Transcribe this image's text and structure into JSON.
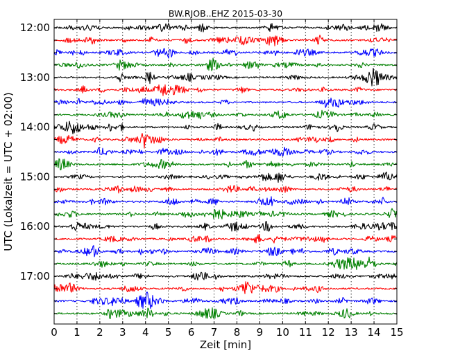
{
  "chart_data": {
    "type": "line",
    "title": "BW.RJOB..EHZ 2015-03-30",
    "xlabel": "Zeit  [min]",
    "ylabel": "UTC (Lokalzeit = UTC + 02:00)",
    "xlim": [
      0,
      15
    ],
    "x_ticks": [
      "0",
      "1",
      "2",
      "3",
      "4",
      "5",
      "6",
      "7",
      "8",
      "9",
      "10",
      "11",
      "12",
      "13",
      "14",
      "15"
    ],
    "y_ticks": [
      "12:00",
      "13:00",
      "14:00",
      "15:00",
      "16:00",
      "17:00"
    ],
    "grid": "x-dotted",
    "trace_interval_minutes": 15,
    "traces": [
      {
        "start": "12:00",
        "color": "#000000"
      },
      {
        "start": "12:15",
        "color": "#ff0000"
      },
      {
        "start": "12:30",
        "color": "#0000ff"
      },
      {
        "start": "12:45",
        "color": "#008000"
      },
      {
        "start": "13:00",
        "color": "#000000"
      },
      {
        "start": "13:15",
        "color": "#ff0000"
      },
      {
        "start": "13:30",
        "color": "#0000ff"
      },
      {
        "start": "13:45",
        "color": "#008000"
      },
      {
        "start": "14:00",
        "color": "#000000"
      },
      {
        "start": "14:15",
        "color": "#ff0000"
      },
      {
        "start": "14:30",
        "color": "#0000ff"
      },
      {
        "start": "14:45",
        "color": "#008000"
      },
      {
        "start": "15:00",
        "color": "#000000"
      },
      {
        "start": "15:15",
        "color": "#ff0000"
      },
      {
        "start": "15:30",
        "color": "#0000ff"
      },
      {
        "start": "15:45",
        "color": "#008000"
      },
      {
        "start": "16:00",
        "color": "#000000"
      },
      {
        "start": "16:15",
        "color": "#ff0000"
      },
      {
        "start": "16:30",
        "color": "#0000ff"
      },
      {
        "start": "16:45",
        "color": "#008000"
      },
      {
        "start": "17:00",
        "color": "#000000"
      },
      {
        "start": "17:15",
        "color": "#ff0000"
      },
      {
        "start": "17:30",
        "color": "#0000ff"
      },
      {
        "start": "17:45",
        "color": "#008000"
      }
    ]
  }
}
